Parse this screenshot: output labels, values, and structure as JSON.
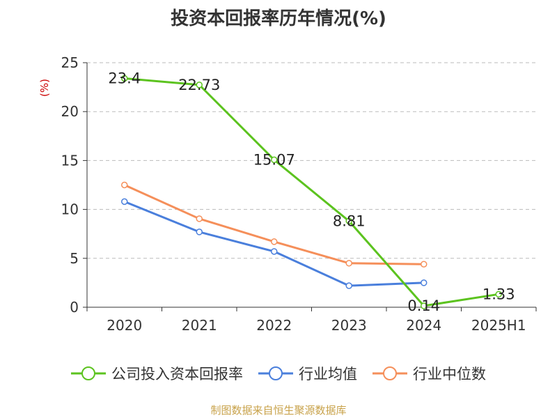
{
  "chart_data": {
    "type": "line",
    "title": "投资本回报率历年情况(%)",
    "ylabel": "(%)",
    "xlabel": "",
    "categories": [
      "2020",
      "2021",
      "2022",
      "2023",
      "2024",
      "2025H1"
    ],
    "ylim": [
      0,
      25
    ],
    "yticks": [
      "0",
      "5",
      "10",
      "15",
      "20",
      "25"
    ],
    "grid": true,
    "legend_position": "bottom",
    "series": [
      {
        "name": "公司投入资本回报率",
        "color": "#5cc31f",
        "values": [
          23.4,
          22.73,
          15.07,
          8.81,
          0.14,
          1.33
        ],
        "labels": [
          "23.4",
          "22.73",
          "15.07",
          "8.81",
          "0.14",
          "1.33"
        ]
      },
      {
        "name": "行业均值",
        "color": "#4a7fdc",
        "values": [
          10.8,
          7.7,
          5.7,
          2.2,
          2.5,
          null
        ],
        "labels": []
      },
      {
        "name": "行业中位数",
        "color": "#f58f5a",
        "values": [
          12.5,
          9.05,
          6.7,
          4.5,
          4.4,
          null
        ],
        "labels": []
      }
    ]
  },
  "source": "制图数据来自恒生聚源数据库",
  "ylabel_color": "#cc0000"
}
